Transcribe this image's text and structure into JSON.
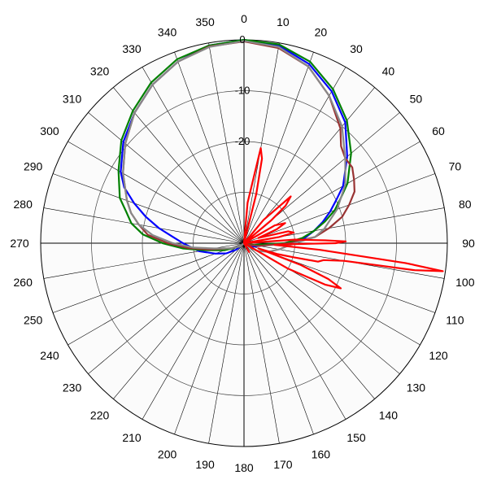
{
  "chart_data": {
    "type": "polar-line",
    "title": "",
    "angle_unit": "deg",
    "angle_labels": [
      "0",
      "10",
      "20",
      "30",
      "40",
      "50",
      "60",
      "70",
      "80",
      "90",
      "100",
      "110",
      "120",
      "130",
      "140",
      "150",
      "160",
      "170",
      "180",
      "190",
      "200",
      "210",
      "220",
      "230",
      "240",
      "250",
      "260",
      "270",
      "280",
      "290",
      "300",
      "310",
      "320",
      "330",
      "340",
      "350"
    ],
    "radial_range_db": [
      -40,
      0
    ],
    "radial_ticks": [
      0,
      -10,
      -20
    ],
    "radial_tick_labels": [
      "0",
      "-10",
      "-20"
    ],
    "grid": true,
    "series": [
      {
        "color": "#0000ff",
        "points": [
          [
            0,
            0
          ],
          [
            10,
            -0.5
          ],
          [
            20,
            -2.5
          ],
          [
            30,
            -5.5
          ],
          [
            40,
            -9
          ],
          [
            50,
            -13.5
          ],
          [
            60,
            -17.5
          ],
          [
            65,
            -20
          ],
          [
            70,
            -22
          ],
          [
            75,
            -24
          ],
          [
            80,
            -26
          ],
          [
            85,
            -28
          ],
          [
            90,
            -32
          ],
          [
            100,
            -37
          ],
          [
            110,
            -38
          ],
          [
            130,
            -40
          ],
          [
            150,
            -40
          ],
          [
            170,
            -40
          ],
          [
            190,
            -40
          ],
          [
            210,
            -40
          ],
          [
            230,
            -38
          ],
          [
            240,
            -36
          ],
          [
            250,
            -34
          ],
          [
            260,
            -31
          ],
          [
            270,
            -28
          ],
          [
            275,
            -26
          ],
          [
            280,
            -23
          ],
          [
            285,
            -20
          ],
          [
            290,
            -17
          ],
          [
            295,
            -14
          ],
          [
            300,
            -12
          ],
          [
            310,
            -9
          ],
          [
            320,
            -6.5
          ],
          [
            330,
            -4
          ],
          [
            340,
            -2
          ],
          [
            350,
            -0.5
          ],
          [
            360,
            0
          ]
        ]
      },
      {
        "color": "#008000",
        "points": [
          [
            0,
            0
          ],
          [
            10,
            -0.3
          ],
          [
            20,
            -2
          ],
          [
            30,
            -5
          ],
          [
            40,
            -8.5
          ],
          [
            50,
            -12.5
          ],
          [
            60,
            -16.5
          ],
          [
            65,
            -19
          ],
          [
            70,
            -21
          ],
          [
            75,
            -23.5
          ],
          [
            80,
            -26
          ],
          [
            85,
            -28.5
          ],
          [
            90,
            -32
          ],
          [
            100,
            -38
          ],
          [
            110,
            -40
          ],
          [
            130,
            -40
          ],
          [
            150,
            -40
          ],
          [
            170,
            -40
          ],
          [
            190,
            -40
          ],
          [
            210,
            -40
          ],
          [
            230,
            -39
          ],
          [
            250,
            -36
          ],
          [
            260,
            -32
          ],
          [
            265,
            -28
          ],
          [
            270,
            -24
          ],
          [
            275,
            -20
          ],
          [
            280,
            -17.5
          ],
          [
            285,
            -16
          ],
          [
            290,
            -14
          ],
          [
            300,
            -11.5
          ],
          [
            310,
            -8.5
          ],
          [
            320,
            -6
          ],
          [
            330,
            -3.5
          ],
          [
            340,
            -1.5
          ],
          [
            350,
            -0.5
          ],
          [
            360,
            0
          ]
        ]
      },
      {
        "color": "#993333",
        "points": [
          [
            0,
            -0.3
          ],
          [
            10,
            -1
          ],
          [
            20,
            -3
          ],
          [
            30,
            -6.5
          ],
          [
            40,
            -10.5
          ],
          [
            45,
            -13
          ],
          [
            50,
            -14
          ],
          [
            55,
            -14
          ],
          [
            60,
            -15
          ],
          [
            65,
            -16
          ],
          [
            70,
            -18
          ],
          [
            75,
            -20
          ],
          [
            80,
            -23
          ],
          [
            85,
            -26
          ],
          [
            90,
            -31
          ],
          [
            100,
            -37
          ],
          [
            110,
            -39
          ],
          [
            130,
            -40
          ],
          [
            150,
            -40
          ],
          [
            170,
            -40
          ],
          [
            190,
            -40
          ],
          [
            210,
            -40
          ],
          [
            230,
            -39
          ],
          [
            250,
            -37
          ],
          [
            260,
            -33
          ],
          [
            265,
            -29
          ],
          [
            270,
            -25
          ],
          [
            275,
            -21
          ],
          [
            280,
            -19
          ],
          [
            285,
            -17
          ],
          [
            290,
            -15.5
          ],
          [
            300,
            -12.5
          ],
          [
            310,
            -9.5
          ],
          [
            320,
            -6.5
          ],
          [
            330,
            -4
          ],
          [
            340,
            -2
          ],
          [
            350,
            -0.7
          ],
          [
            360,
            -0.3
          ]
        ]
      },
      {
        "color": "#888888",
        "points": [
          [
            0,
            -0.2
          ],
          [
            10,
            -0.8
          ],
          [
            20,
            -3
          ],
          [
            30,
            -6.5
          ],
          [
            40,
            -10
          ],
          [
            50,
            -14
          ],
          [
            60,
            -17
          ],
          [
            70,
            -20.5
          ],
          [
            80,
            -24
          ],
          [
            85,
            -26
          ],
          [
            90,
            -30
          ],
          [
            100,
            -33
          ],
          [
            110,
            -35
          ],
          [
            120,
            -37
          ],
          [
            130,
            -39
          ],
          [
            150,
            -40
          ],
          [
            170,
            -40
          ],
          [
            190,
            -40
          ],
          [
            210,
            -40
          ],
          [
            230,
            -39
          ],
          [
            250,
            -37
          ],
          [
            260,
            -34
          ],
          [
            265,
            -30
          ],
          [
            270,
            -26
          ],
          [
            275,
            -22
          ],
          [
            280,
            -19
          ],
          [
            285,
            -17
          ],
          [
            290,
            -15.5
          ],
          [
            300,
            -12.5
          ],
          [
            310,
            -9.5
          ],
          [
            320,
            -6.5
          ],
          [
            330,
            -4
          ],
          [
            340,
            -2
          ],
          [
            350,
            -0.8
          ],
          [
            360,
            -0.2
          ]
        ]
      },
      {
        "color": "#ff0000",
        "points": [
          [
            0,
            -40
          ],
          [
            5,
            -32
          ],
          [
            10,
            -21
          ],
          [
            12,
            -23
          ],
          [
            14,
            -30
          ],
          [
            16,
            -40
          ],
          [
            30,
            -40
          ],
          [
            40,
            -34
          ],
          [
            45,
            -27
          ],
          [
            48,
            -29
          ],
          [
            50,
            -33
          ],
          [
            55,
            -40
          ],
          [
            60,
            -33
          ],
          [
            64,
            -31
          ],
          [
            67,
            -33
          ],
          [
            70,
            -37
          ],
          [
            75,
            -31
          ],
          [
            78,
            -30
          ],
          [
            80,
            -33
          ],
          [
            83,
            -40
          ],
          [
            86,
            -30
          ],
          [
            88,
            -24
          ],
          [
            89,
            -20
          ],
          [
            90,
            -22
          ],
          [
            91,
            -30
          ],
          [
            93,
            -34
          ],
          [
            95,
            -25
          ],
          [
            97,
            -8
          ],
          [
            98,
            -0.5
          ],
          [
            99,
            -6
          ],
          [
            100,
            -20
          ],
          [
            102,
            -24
          ],
          [
            104,
            -25
          ],
          [
            106,
            -30
          ],
          [
            108,
            -33
          ],
          [
            110,
            -37
          ],
          [
            111,
            -28
          ],
          [
            113,
            -22
          ],
          [
            115,
            -19
          ],
          [
            117,
            -22
          ],
          [
            120,
            -30
          ],
          [
            125,
            -40
          ],
          [
            140,
            -40
          ],
          [
            150,
            -38
          ],
          [
            155,
            -40
          ],
          [
            180,
            -40
          ],
          [
            360,
            -40
          ]
        ]
      }
    ]
  }
}
